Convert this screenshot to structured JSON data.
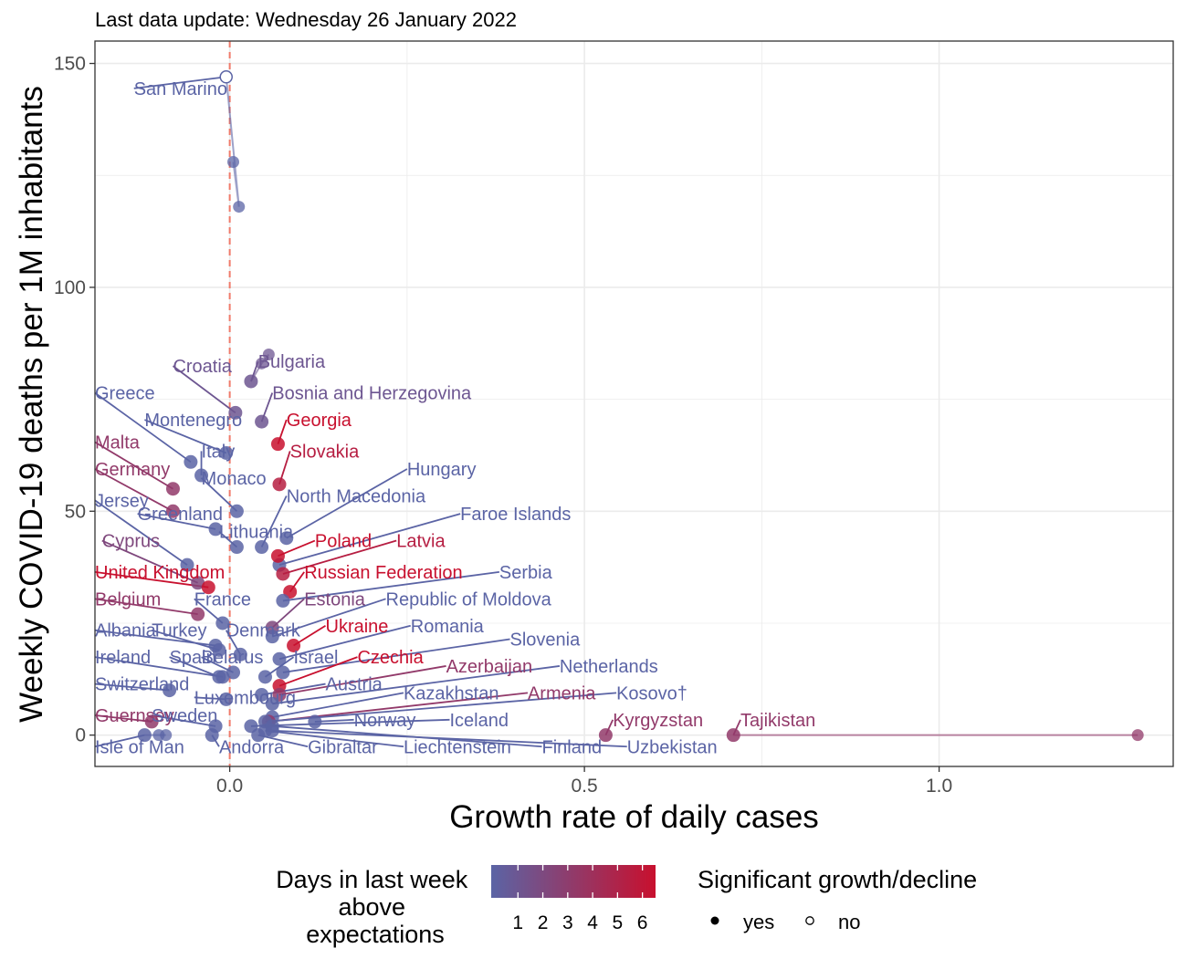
{
  "subtitle": "Last data update: Wednesday 26 January 2022",
  "chart_data": {
    "type": "scatter",
    "xlabel": "Growth rate of daily cases",
    "ylabel": "Weekly COVID-19 deaths per 1M inhabitants",
    "xlim": [
      -0.19,
      1.33
    ],
    "ylim": [
      -7,
      155
    ],
    "x_ticks": [
      0.0,
      0.5,
      1.0
    ],
    "x_tick_labels": [
      "0.0",
      "0.5",
      "1.0"
    ],
    "y_ticks": [
      0,
      50,
      100,
      150
    ],
    "y_tick_labels": [
      "0",
      "50",
      "100",
      "150"
    ],
    "grid": true,
    "reference_line": {
      "x": 0,
      "style": "dashed",
      "color": "#f07a6a"
    },
    "colors": {
      "low": "#5b64a5",
      "high": "#c8102e",
      "grid": "#ebebeb"
    },
    "legend": {
      "placement": "bottom",
      "color_title": "Days in last week above expectations",
      "color_ticks": [
        "1",
        "2",
        "3",
        "4",
        "5",
        "6"
      ],
      "shape_title": "Significant growth/decline",
      "shape_items": [
        "yes",
        "no"
      ]
    },
    "countries": [
      {
        "name": "San Marino",
        "x": -0.005,
        "y": 147,
        "days": 0,
        "sig": false,
        "label_x": -0.135,
        "label_y": 143,
        "trail": [
          [
            0.013,
            118
          ],
          [
            0.005,
            128
          ]
        ]
      },
      {
        "name": "Croatia",
        "x": 0.008,
        "y": 72,
        "days": 1,
        "sig": true,
        "label_x": -0.08,
        "label_y": 81
      },
      {
        "name": "Bulgaria",
        "x": 0.03,
        "y": 79,
        "days": 1,
        "sig": true,
        "label_x": 0.04,
        "label_y": 82,
        "trail": [
          [
            0.045,
            83
          ],
          [
            0.055,
            85
          ]
        ]
      },
      {
        "name": "Greece",
        "x": -0.055,
        "y": 61,
        "days": 0,
        "sig": true,
        "label_x": -0.19,
        "label_y": 75
      },
      {
        "name": "Bosnia and Herzegovina",
        "x": 0.045,
        "y": 70,
        "days": 1,
        "sig": true,
        "label_x": 0.06,
        "label_y": 75
      },
      {
        "name": "Montenegro",
        "x": -0.005,
        "y": 63,
        "days": 0,
        "sig": true,
        "label_x": -0.12,
        "label_y": 69
      },
      {
        "name": "Georgia",
        "x": 0.068,
        "y": 65,
        "days": 6,
        "sig": true,
        "label_x": 0.08,
        "label_y": 69
      },
      {
        "name": "Malta",
        "x": -0.08,
        "y": 55,
        "days": 3,
        "sig": true,
        "label_x": -0.19,
        "label_y": 64
      },
      {
        "name": "Italy",
        "x": -0.04,
        "y": 58,
        "days": 0,
        "sig": true,
        "label_x": -0.04,
        "label_y": 62
      },
      {
        "name": "Slovakia",
        "x": 0.07,
        "y": 56,
        "days": 5,
        "sig": true,
        "label_x": 0.085,
        "label_y": 62
      },
      {
        "name": "Germany",
        "x": -0.08,
        "y": 50,
        "days": 3,
        "sig": true,
        "label_x": -0.19,
        "label_y": 58
      },
      {
        "name": "Hungary",
        "x": 0.08,
        "y": 44,
        "days": 0,
        "sig": true,
        "label_x": 0.25,
        "label_y": 58
      },
      {
        "name": "Monaco",
        "x": 0.01,
        "y": 50,
        "days": 0,
        "sig": true,
        "label_x": -0.04,
        "label_y": 56
      },
      {
        "name": "Jersey",
        "x": -0.06,
        "y": 38,
        "days": 0,
        "sig": true,
        "label_x": -0.19,
        "label_y": 51
      },
      {
        "name": "North Macedonia",
        "x": 0.045,
        "y": 42,
        "days": 0,
        "sig": true,
        "label_x": 0.08,
        "label_y": 52
      },
      {
        "name": "Greenland",
        "x": -0.02,
        "y": 46,
        "days": 0,
        "sig": true,
        "label_x": -0.13,
        "label_y": 48
      },
      {
        "name": "Faroe Islands",
        "x": 0.07,
        "y": 38,
        "days": 0,
        "sig": true,
        "label_x": 0.325,
        "label_y": 48
      },
      {
        "name": "Lithuania",
        "x": 0.01,
        "y": 42,
        "days": 0,
        "sig": true,
        "label_x": -0.015,
        "label_y": 44
      },
      {
        "name": "Cyprus",
        "x": -0.045,
        "y": 34,
        "days": 2,
        "sig": true,
        "label_x": -0.18,
        "label_y": 42
      },
      {
        "name": "Poland",
        "x": 0.068,
        "y": 40,
        "days": 6,
        "sig": true,
        "label_x": 0.12,
        "label_y": 42
      },
      {
        "name": "Latvia",
        "x": 0.075,
        "y": 36,
        "days": 5,
        "sig": true,
        "label_x": 0.235,
        "label_y": 42
      },
      {
        "name": "United Kingdom",
        "x": -0.03,
        "y": 33,
        "days": 6,
        "sig": true,
        "label_x": -0.19,
        "label_y": 35
      },
      {
        "name": "Russian Federation",
        "x": 0.085,
        "y": 32,
        "days": 6,
        "sig": true,
        "label_x": 0.105,
        "label_y": 35
      },
      {
        "name": "Serbia",
        "x": 0.075,
        "y": 30,
        "days": 0,
        "sig": true,
        "label_x": 0.38,
        "label_y": 35
      },
      {
        "name": "Belgium",
        "x": -0.045,
        "y": 27,
        "days": 3,
        "sig": true,
        "label_x": -0.19,
        "label_y": 29
      },
      {
        "name": "France",
        "x": -0.01,
        "y": 25,
        "days": 0,
        "sig": true,
        "label_x": -0.05,
        "label_y": 29
      },
      {
        "name": "Estonia",
        "x": 0.06,
        "y": 24,
        "days": 2,
        "sig": true,
        "label_x": 0.105,
        "label_y": 29
      },
      {
        "name": "Republic of Moldova",
        "x": 0.06,
        "y": 22,
        "days": 0,
        "sig": true,
        "label_x": 0.22,
        "label_y": 29
      },
      {
        "name": "Albania",
        "x": -0.02,
        "y": 20,
        "days": 0,
        "sig": true,
        "label_x": -0.19,
        "label_y": 22
      },
      {
        "name": "Turkey",
        "x": -0.015,
        "y": 19,
        "days": 0,
        "sig": true,
        "label_x": -0.11,
        "label_y": 22
      },
      {
        "name": "Denmark",
        "x": 0.015,
        "y": 18,
        "days": 0,
        "sig": true,
        "label_x": -0.005,
        "label_y": 22
      },
      {
        "name": "Ukraine",
        "x": 0.09,
        "y": 20,
        "days": 6,
        "sig": true,
        "label_x": 0.135,
        "label_y": 23
      },
      {
        "name": "Romania",
        "x": 0.07,
        "y": 17,
        "days": 0,
        "sig": true,
        "label_x": 0.255,
        "label_y": 23
      },
      {
        "name": "Slovenia",
        "x": 0.075,
        "y": 14,
        "days": 0,
        "sig": true,
        "label_x": 0.395,
        "label_y": 20
      },
      {
        "name": "Ireland",
        "x": -0.01,
        "y": 13,
        "days": 0,
        "sig": true,
        "label_x": -0.19,
        "label_y": 16
      },
      {
        "name": "Spain",
        "x": -0.015,
        "y": 13,
        "days": 0,
        "sig": true,
        "label_x": -0.085,
        "label_y": 16
      },
      {
        "name": "Belarus",
        "x": 0.005,
        "y": 14,
        "days": 0,
        "sig": true,
        "label_x": -0.04,
        "label_y": 16
      },
      {
        "name": "Israel",
        "x": 0.05,
        "y": 13,
        "days": 0,
        "sig": true,
        "label_x": 0.09,
        "label_y": 16
      },
      {
        "name": "Czechia",
        "x": 0.07,
        "y": 11,
        "days": 6,
        "sig": true,
        "label_x": 0.18,
        "label_y": 16
      },
      {
        "name": "Azerbaijan",
        "x": 0.07,
        "y": 9,
        "days": 3,
        "sig": true,
        "label_x": 0.305,
        "label_y": 14
      },
      {
        "name": "Netherlands",
        "x": 0.06,
        "y": 7,
        "days": 0,
        "sig": true,
        "label_x": 0.465,
        "label_y": 14
      },
      {
        "name": "Switzerland",
        "x": -0.085,
        "y": 10,
        "days": 0,
        "sig": true,
        "label_x": -0.19,
        "label_y": 10
      },
      {
        "name": "Austria",
        "x": 0.045,
        "y": 9,
        "days": 0,
        "sig": true,
        "label_x": 0.135,
        "label_y": 10
      },
      {
        "name": "Kazakhstan",
        "x": 0.06,
        "y": 4,
        "days": 0,
        "sig": true,
        "label_x": 0.245,
        "label_y": 8
      },
      {
        "name": "Armenia",
        "x": 0.055,
        "y": 3,
        "days": 3,
        "sig": true,
        "label_x": 0.42,
        "label_y": 8
      },
      {
        "name": "Kosovo†",
        "x": 0.05,
        "y": 3,
        "days": 0,
        "sig": true,
        "label_x": 0.545,
        "label_y": 8
      },
      {
        "name": "Luxembourg",
        "x": -0.005,
        "y": 8,
        "days": 0,
        "sig": true,
        "label_x": -0.05,
        "label_y": 7
      },
      {
        "name": "Guernsey",
        "x": -0.11,
        "y": 3,
        "days": 3,
        "sig": true,
        "label_x": -0.19,
        "label_y": 3
      },
      {
        "name": "Sweden",
        "x": -0.02,
        "y": 2,
        "days": 0,
        "sig": true,
        "label_x": -0.11,
        "label_y": 3
      },
      {
        "name": "Norway",
        "x": 0.12,
        "y": 3,
        "days": 0,
        "sig": true,
        "label_x": 0.175,
        "label_y": 2
      },
      {
        "name": "Iceland",
        "x": 0.03,
        "y": 2,
        "days": 0,
        "sig": true,
        "label_x": 0.31,
        "label_y": 2
      },
      {
        "name": "Kyrgyzstan",
        "x": 0.53,
        "y": 0,
        "days": 3,
        "sig": true,
        "label_x": 0.54,
        "label_y": 2
      },
      {
        "name": "Tajikistan",
        "x": 0.71,
        "y": 0,
        "days": 3,
        "sig": true,
        "label_x": 0.72,
        "label_y": 2,
        "trail": [
          [
            1.28,
            0
          ]
        ]
      },
      {
        "name": "Isle of Man",
        "x": -0.12,
        "y": 0,
        "days": 0,
        "sig": true,
        "label_x": -0.19,
        "label_y": -4,
        "trail": [
          [
            -0.09,
            0
          ],
          [
            -0.1,
            0
          ]
        ]
      },
      {
        "name": "Andorra",
        "x": -0.025,
        "y": 0,
        "days": 0,
        "sig": true,
        "label_x": -0.015,
        "label_y": -4
      },
      {
        "name": "Gibraltar",
        "x": 0.04,
        "y": 0,
        "days": 0,
        "sig": true,
        "label_x": 0.11,
        "label_y": -4
      },
      {
        "name": "Liechtenstein",
        "x": 0.05,
        "y": 1,
        "days": 0,
        "sig": true,
        "label_x": 0.245,
        "label_y": -4
      },
      {
        "name": "Finland",
        "x": 0.06,
        "y": 2,
        "days": 0,
        "sig": true,
        "label_x": 0.44,
        "label_y": -4
      },
      {
        "name": "Uzbekistan",
        "x": 0.06,
        "y": 1,
        "days": 0,
        "sig": true,
        "label_x": 0.56,
        "label_y": -4
      }
    ]
  }
}
